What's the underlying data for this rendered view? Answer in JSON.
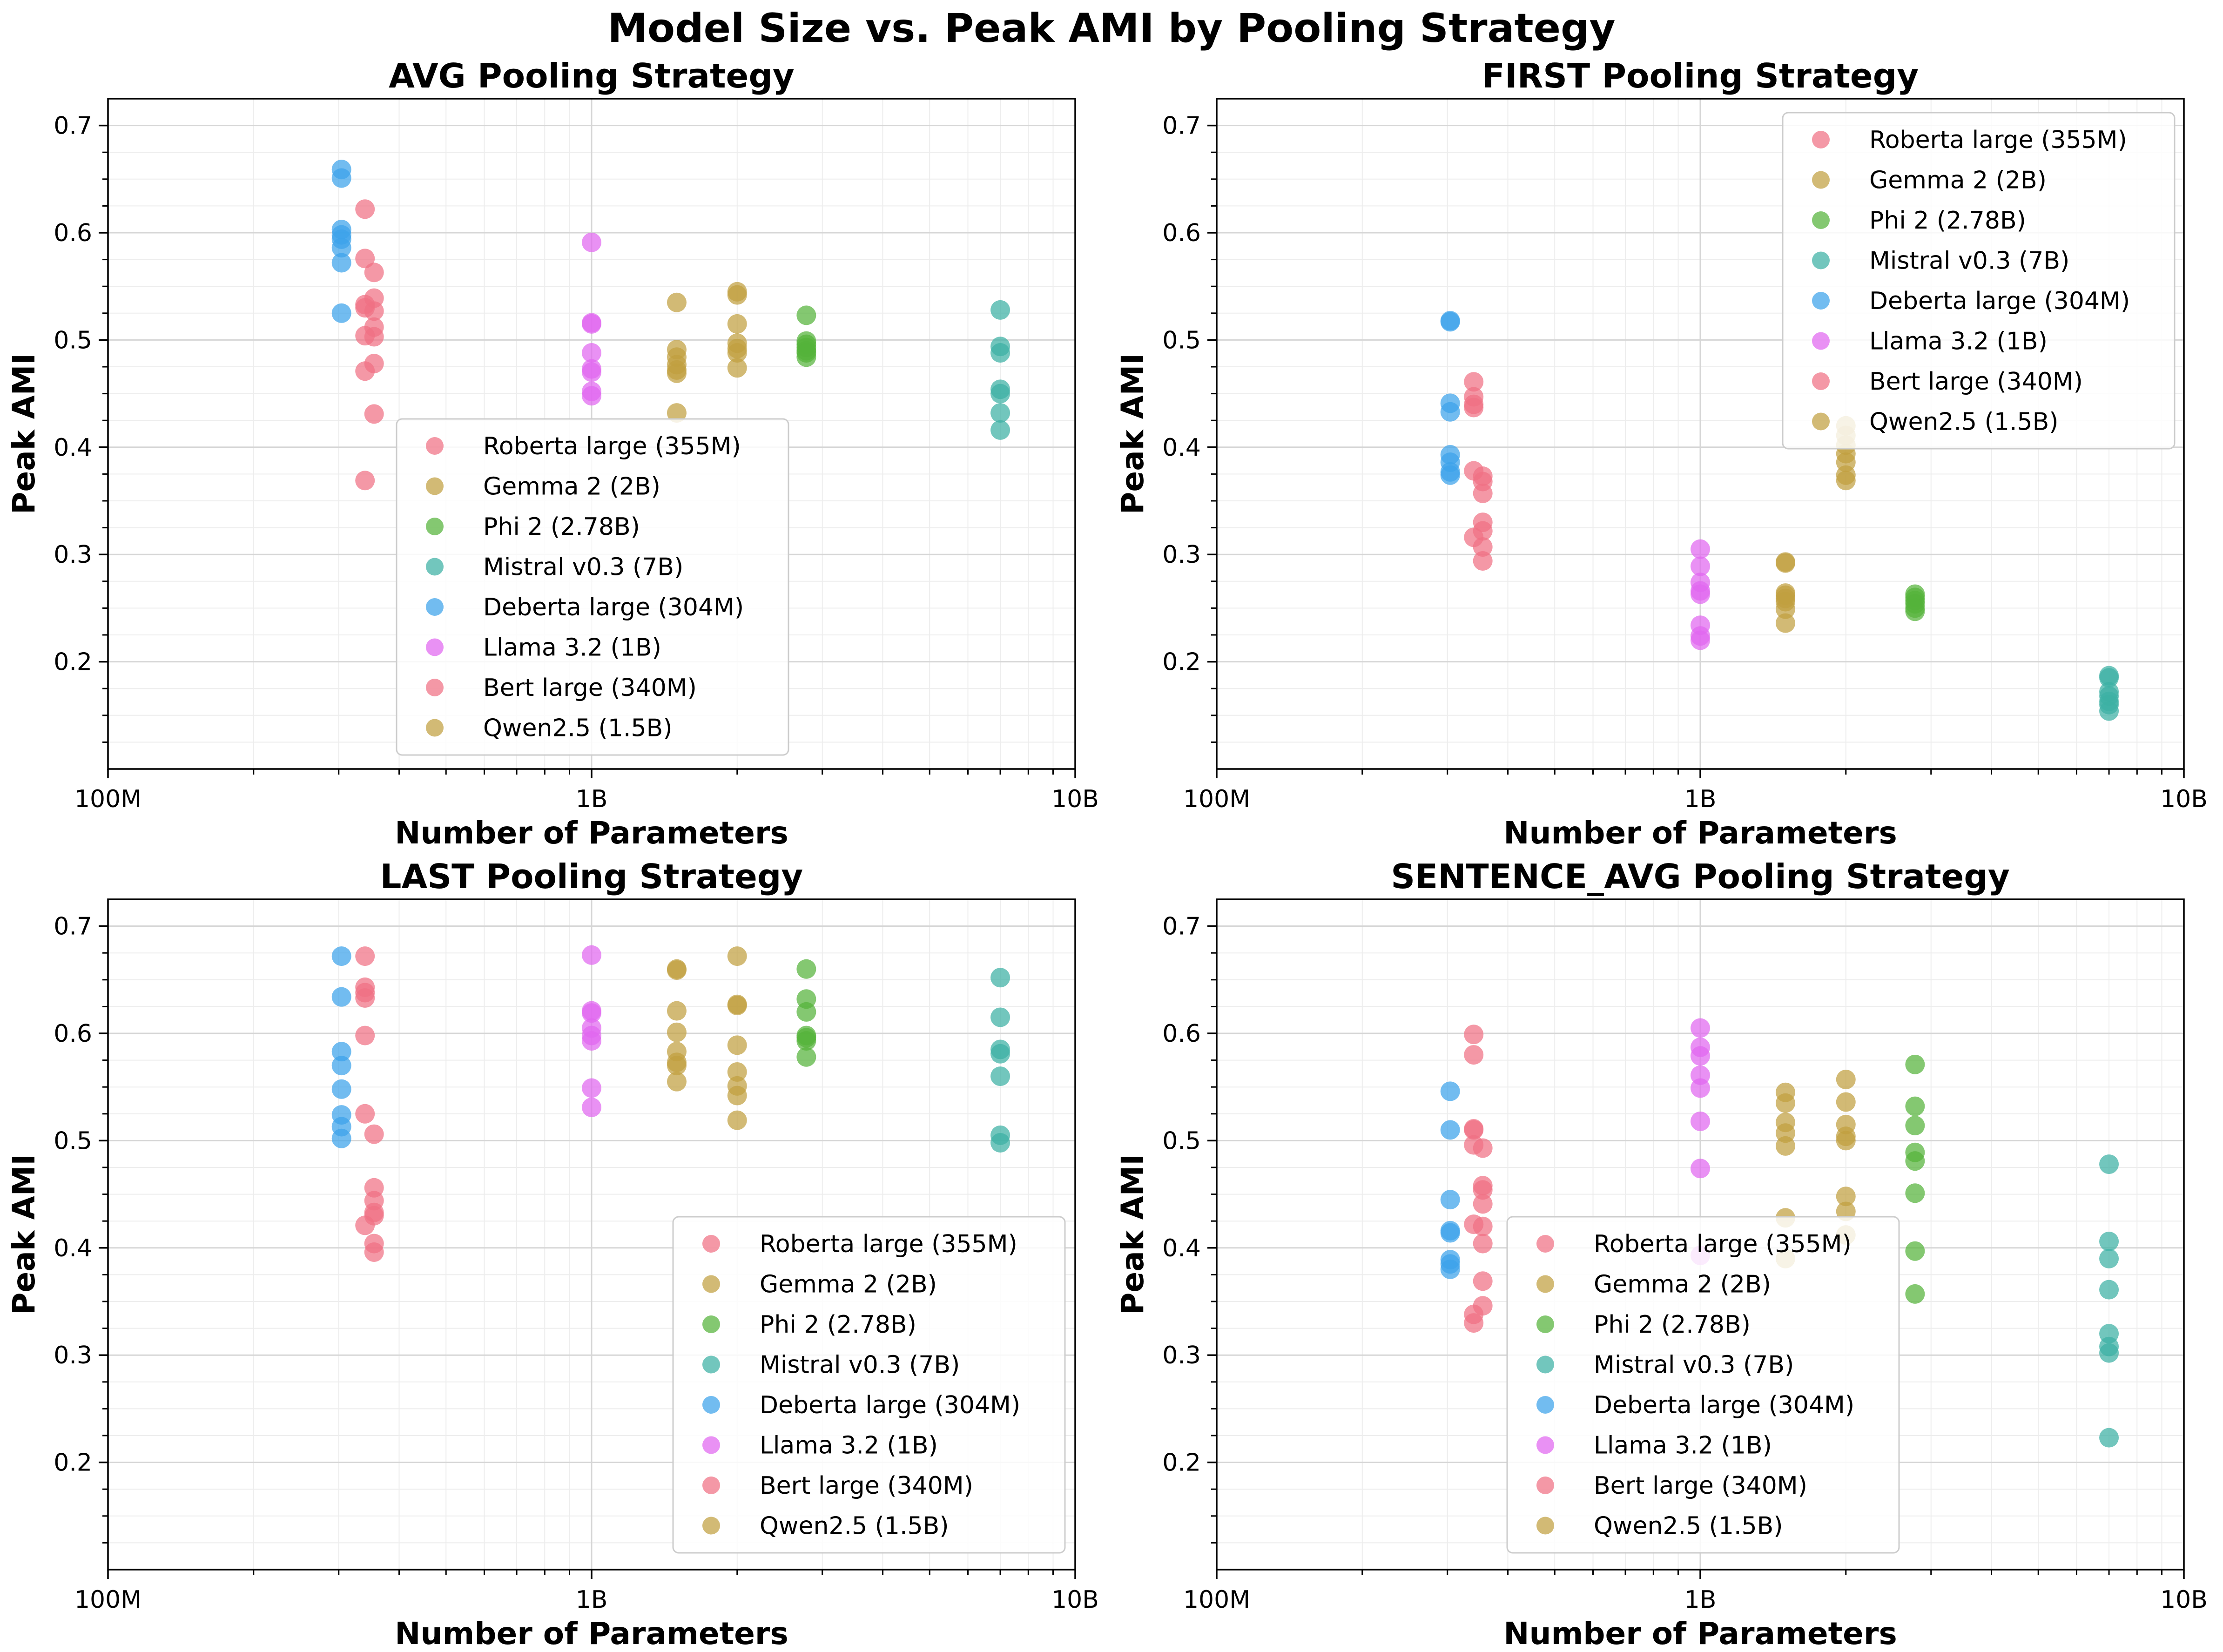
{
  "title": "Model Size vs. Peak AMI by Pooling Strategy",
  "legend_entries": [
    {
      "label": "Roberta large (355M)",
      "color": "#f07083"
    },
    {
      "label": "Gemma 2 (2B)",
      "color": "#c0a040"
    },
    {
      "label": "Phi 2 (2.78B)",
      "color": "#55b33a"
    },
    {
      "label": "Mistral v0.3 (7B)",
      "color": "#3bb0a3"
    },
    {
      "label": "Deberta large (304M)",
      "color": "#3ca2ea"
    },
    {
      "label": "Llama 3.2 (1B)",
      "color": "#e066f0"
    },
    {
      "label": "Bert large (340M)",
      "color": "#f07083"
    },
    {
      "label": "Qwen2.5 (1.5B)",
      "color": "#c0a040"
    }
  ],
  "chart_data": [
    {
      "type": "scatter",
      "title": "AVG Pooling Strategy",
      "xlabel": "Number of Parameters",
      "ylabel": "Peak AMI",
      "xscale": "log",
      "xlim": [
        100000000,
        10000000000
      ],
      "ylim": [
        0.1,
        0.725
      ],
      "xticks": [
        {
          "value": 100000000,
          "label": "100M"
        },
        {
          "value": 1000000000,
          "label": "1B"
        },
        {
          "value": 10000000000,
          "label": "10B"
        }
      ],
      "yticks": [
        {
          "value": 0.2,
          "label": "0.2"
        },
        {
          "value": 0.3,
          "label": "0.3"
        },
        {
          "value": 0.4,
          "label": "0.4"
        },
        {
          "value": 0.5,
          "label": "0.5"
        },
        {
          "value": 0.6,
          "label": "0.6"
        },
        {
          "value": 0.7,
          "label": "0.7"
        }
      ],
      "grid": true,
      "legend": "bottom-center",
      "series": [
        {
          "name": "Roberta large (355M)",
          "x": 355000000,
          "values": [
            0.563,
            0.539,
            0.527,
            0.512,
            0.503,
            0.478,
            0.431
          ]
        },
        {
          "name": "Gemma 2 (2B)",
          "x": 2000000000,
          "values": [
            0.545,
            0.542,
            0.515,
            0.497,
            0.492,
            0.488,
            0.474
          ]
        },
        {
          "name": "Phi 2 (2.78B)",
          "x": 2780000000,
          "values": [
            0.523,
            0.499,
            0.496,
            0.493,
            0.49,
            0.488,
            0.484
          ]
        },
        {
          "name": "Mistral v0.3 (7B)",
          "x": 7000000000,
          "values": [
            0.528,
            0.494,
            0.488,
            0.454,
            0.45,
            0.432,
            0.416
          ]
        },
        {
          "name": "Deberta large (304M)",
          "x": 304000000,
          "values": [
            0.659,
            0.651,
            0.603,
            0.598,
            0.594,
            0.586,
            0.572,
            0.525
          ]
        },
        {
          "name": "Llama 3.2 (1B)",
          "x": 1000000000,
          "values": [
            0.591,
            0.516,
            0.515,
            0.488,
            0.473,
            0.47,
            0.452,
            0.448
          ]
        },
        {
          "name": "Bert large (340M)",
          "x": 340000000,
          "values": [
            0.622,
            0.576,
            0.533,
            0.53,
            0.504,
            0.471,
            0.369
          ]
        },
        {
          "name": "Qwen2.5 (1.5B)",
          "x": 1500000000,
          "values": [
            0.535,
            0.491,
            0.484,
            0.477,
            0.472,
            0.469,
            0.432
          ]
        }
      ]
    },
    {
      "type": "scatter",
      "title": "FIRST Pooling Strategy",
      "xlabel": "Number of Parameters",
      "ylabel": "Peak AMI",
      "xscale": "log",
      "xlim": [
        100000000,
        10000000000
      ],
      "ylim": [
        0.1,
        0.725
      ],
      "xticks": [
        {
          "value": 100000000,
          "label": "100M"
        },
        {
          "value": 1000000000,
          "label": "1B"
        },
        {
          "value": 10000000000,
          "label": "10B"
        }
      ],
      "yticks": [
        {
          "value": 0.2,
          "label": "0.2"
        },
        {
          "value": 0.3,
          "label": "0.3"
        },
        {
          "value": 0.4,
          "label": "0.4"
        },
        {
          "value": 0.5,
          "label": "0.5"
        },
        {
          "value": 0.6,
          "label": "0.6"
        },
        {
          "value": 0.7,
          "label": "0.7"
        }
      ],
      "grid": true,
      "legend": "top-right",
      "series": [
        {
          "name": "Roberta large (355M)",
          "x": 355000000,
          "values": [
            0.373,
            0.368,
            0.357,
            0.33,
            0.322,
            0.307,
            0.294
          ]
        },
        {
          "name": "Gemma 2 (2B)",
          "x": 2000000000,
          "values": [
            0.42,
            0.411,
            0.402,
            0.394,
            0.386,
            0.374,
            0.369
          ]
        },
        {
          "name": "Phi 2 (2.78B)",
          "x": 2780000000,
          "values": [
            0.263,
            0.26,
            0.257,
            0.254,
            0.25,
            0.247
          ]
        },
        {
          "name": "Mistral v0.3 (7B)",
          "x": 7000000000,
          "values": [
            0.187,
            0.185,
            0.172,
            0.168,
            0.163,
            0.16,
            0.154
          ]
        },
        {
          "name": "Deberta large (304M)",
          "x": 304000000,
          "values": [
            0.518,
            0.517,
            0.441,
            0.433,
            0.393,
            0.386,
            0.377,
            0.374
          ]
        },
        {
          "name": "Llama 3.2 (1B)",
          "x": 1000000000,
          "values": [
            0.305,
            0.289,
            0.274,
            0.266,
            0.263,
            0.234,
            0.224,
            0.22
          ]
        },
        {
          "name": "Bert large (340M)",
          "x": 340000000,
          "values": [
            0.461,
            0.447,
            0.44,
            0.437,
            0.378,
            0.316
          ]
        },
        {
          "name": "Qwen2.5 (1.5B)",
          "x": 1500000000,
          "values": [
            0.293,
            0.292,
            0.264,
            0.262,
            0.259,
            0.256,
            0.249,
            0.236
          ]
        }
      ]
    },
    {
      "type": "scatter",
      "title": "LAST Pooling Strategy",
      "xlabel": "Number of Parameters",
      "ylabel": "Peak AMI",
      "xscale": "log",
      "xlim": [
        100000000,
        10000000000
      ],
      "ylim": [
        0.1,
        0.725
      ],
      "xticks": [
        {
          "value": 100000000,
          "label": "100M"
        },
        {
          "value": 1000000000,
          "label": "1B"
        },
        {
          "value": 10000000000,
          "label": "10B"
        }
      ],
      "yticks": [
        {
          "value": 0.2,
          "label": "0.2"
        },
        {
          "value": 0.3,
          "label": "0.3"
        },
        {
          "value": 0.4,
          "label": "0.4"
        },
        {
          "value": 0.5,
          "label": "0.5"
        },
        {
          "value": 0.6,
          "label": "0.6"
        },
        {
          "value": 0.7,
          "label": "0.7"
        }
      ],
      "grid": true,
      "legend": "bottom-right",
      "series": [
        {
          "name": "Roberta large (355M)",
          "x": 355000000,
          "values": [
            0.506,
            0.456,
            0.444,
            0.433,
            0.43,
            0.404,
            0.396
          ]
        },
        {
          "name": "Gemma 2 (2B)",
          "x": 2000000000,
          "values": [
            0.672,
            0.627,
            0.626,
            0.589,
            0.564,
            0.551,
            0.542,
            0.519
          ]
        },
        {
          "name": "Phi 2 (2.78B)",
          "x": 2780000000,
          "values": [
            0.66,
            0.632,
            0.62,
            0.598,
            0.596,
            0.593,
            0.578
          ]
        },
        {
          "name": "Mistral v0.3 (7B)",
          "x": 7000000000,
          "values": [
            0.652,
            0.615,
            0.585,
            0.581,
            0.56,
            0.505,
            0.498
          ]
        },
        {
          "name": "Deberta large (304M)",
          "x": 304000000,
          "values": [
            0.672,
            0.634,
            0.583,
            0.57,
            0.548,
            0.524,
            0.513,
            0.502
          ]
        },
        {
          "name": "Llama 3.2 (1B)",
          "x": 1000000000,
          "values": [
            0.673,
            0.621,
            0.619,
            0.605,
            0.598,
            0.593,
            0.549,
            0.531
          ]
        },
        {
          "name": "Bert large (340M)",
          "x": 340000000,
          "values": [
            0.672,
            0.643,
            0.638,
            0.633,
            0.598,
            0.525,
            0.421
          ]
        },
        {
          "name": "Qwen2.5 (1.5B)",
          "x": 1500000000,
          "values": [
            0.66,
            0.659,
            0.621,
            0.601,
            0.583,
            0.573,
            0.57,
            0.555
          ]
        }
      ]
    },
    {
      "type": "scatter",
      "title": "SENTENCE_AVG Pooling Strategy",
      "xlabel": "Number of Parameters",
      "ylabel": "Peak AMI",
      "xscale": "log",
      "xlim": [
        100000000,
        10000000000
      ],
      "ylim": [
        0.1,
        0.725
      ],
      "xticks": [
        {
          "value": 100000000,
          "label": "100M"
        },
        {
          "value": 1000000000,
          "label": "1B"
        },
        {
          "value": 10000000000,
          "label": "10B"
        }
      ],
      "yticks": [
        {
          "value": 0.2,
          "label": "0.2"
        },
        {
          "value": 0.3,
          "label": "0.3"
        },
        {
          "value": 0.4,
          "label": "0.4"
        },
        {
          "value": 0.5,
          "label": "0.5"
        },
        {
          "value": 0.6,
          "label": "0.6"
        },
        {
          "value": 0.7,
          "label": "0.7"
        }
      ],
      "grid": true,
      "legend": "bottom-center",
      "series": [
        {
          "name": "Roberta large (355M)",
          "x": 355000000,
          "values": [
            0.493,
            0.458,
            0.454,
            0.441,
            0.42,
            0.404,
            0.369,
            0.346
          ]
        },
        {
          "name": "Gemma 2 (2B)",
          "x": 2000000000,
          "values": [
            0.557,
            0.536,
            0.515,
            0.504,
            0.5,
            0.448,
            0.434,
            0.412
          ]
        },
        {
          "name": "Phi 2 (2.78B)",
          "x": 2780000000,
          "values": [
            0.571,
            0.532,
            0.514,
            0.489,
            0.481,
            0.451,
            0.397,
            0.357
          ]
        },
        {
          "name": "Mistral v0.3 (7B)",
          "x": 7000000000,
          "values": [
            0.478,
            0.406,
            0.39,
            0.361,
            0.32,
            0.308,
            0.302,
            0.223
          ]
        },
        {
          "name": "Deberta large (304M)",
          "x": 304000000,
          "values": [
            0.546,
            0.51,
            0.445,
            0.416,
            0.414,
            0.389,
            0.385,
            0.38
          ]
        },
        {
          "name": "Llama 3.2 (1B)",
          "x": 1000000000,
          "values": [
            0.605,
            0.587,
            0.579,
            0.561,
            0.549,
            0.518,
            0.474,
            0.393
          ]
        },
        {
          "name": "Bert large (340M)",
          "x": 340000000,
          "values": [
            0.599,
            0.58,
            0.511,
            0.51,
            0.496,
            0.422,
            0.338,
            0.33
          ]
        },
        {
          "name": "Qwen2.5 (1.5B)",
          "x": 1500000000,
          "values": [
            0.545,
            0.535,
            0.517,
            0.507,
            0.495,
            0.428,
            0.39
          ]
        }
      ]
    }
  ]
}
